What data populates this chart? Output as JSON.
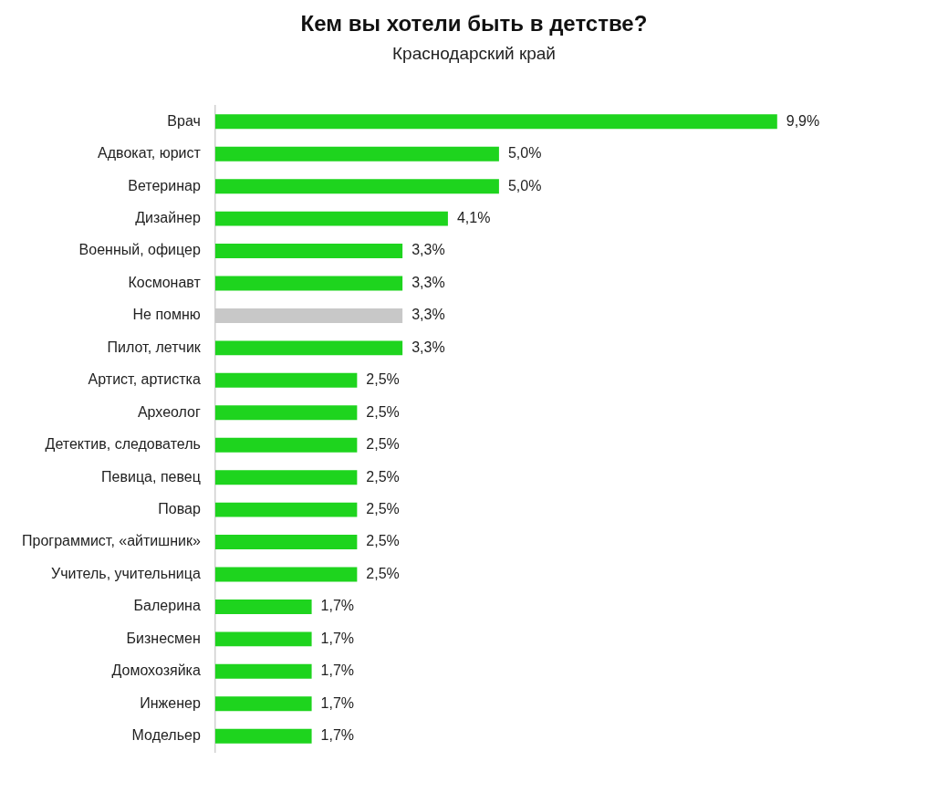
{
  "chart_data": {
    "type": "bar",
    "orientation": "horizontal",
    "title": "Кем вы хотели быть в детстве?",
    "subtitle": "Краснодарский край",
    "categories": [
      "Врач",
      "Адвокат, юрист",
      "Ветеринар",
      "Дизайнер",
      "Военный, офицер",
      "Космонавт",
      "Не помню",
      "Пилот, летчик",
      "Артист, артистка",
      "Археолог",
      "Детектив, следователь",
      "Певица, певец",
      "Повар",
      "Программист, «айтишник»",
      "Учитель, учительница",
      "Балерина",
      "Бизнесмен",
      "Домохозяйка",
      "Инженер",
      "Модельер"
    ],
    "values": [
      9.9,
      5.0,
      5.0,
      4.1,
      3.3,
      3.3,
      3.3,
      3.3,
      2.5,
      2.5,
      2.5,
      2.5,
      2.5,
      2.5,
      2.5,
      1.7,
      1.7,
      1.7,
      1.7,
      1.7
    ],
    "value_labels": [
      "9,9%",
      "5,0%",
      "5,0%",
      "4,1%",
      "3,3%",
      "3,3%",
      "3,3%",
      "3,3%",
      "2,5%",
      "2,5%",
      "2,5%",
      "2,5%",
      "2,5%",
      "2,5%",
      "2,5%",
      "1,7%",
      "1,7%",
      "1,7%",
      "1,7%",
      "1,7%"
    ],
    "colors": [
      "#1ed41e",
      "#1ed41e",
      "#1ed41e",
      "#1ed41e",
      "#1ed41e",
      "#1ed41e",
      "#c8c8c8",
      "#1ed41e",
      "#1ed41e",
      "#1ed41e",
      "#1ed41e",
      "#1ed41e",
      "#1ed41e",
      "#1ed41e",
      "#1ed41e",
      "#1ed41e",
      "#1ed41e",
      "#1ed41e",
      "#1ed41e",
      "#1ed41e"
    ],
    "legend": false
  }
}
